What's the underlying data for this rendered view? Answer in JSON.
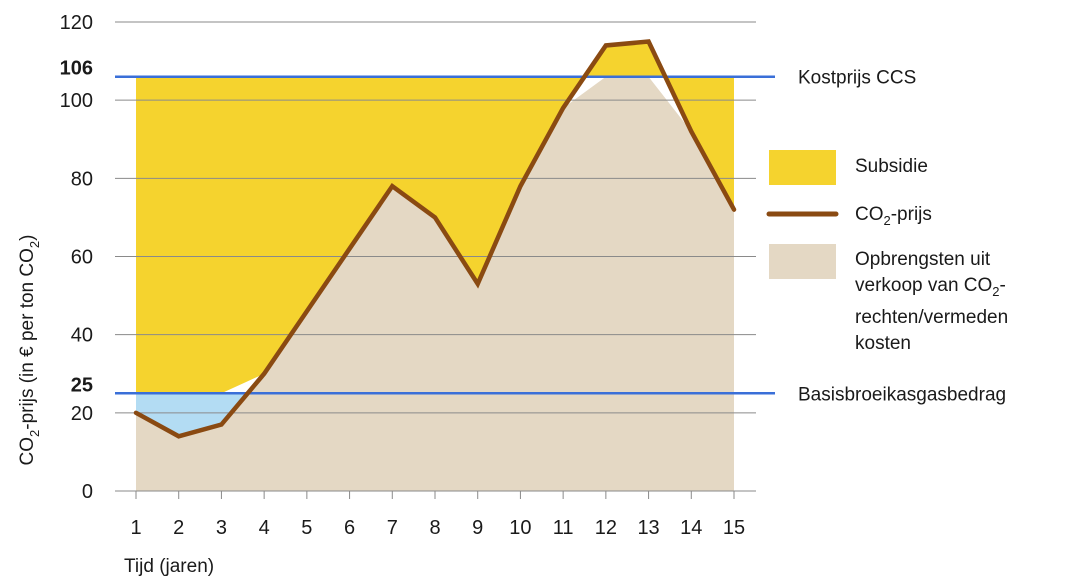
{
  "chart_data": {
    "type": "line",
    "xlabel": "Tijd (jaren)",
    "ylabel": "CO₂-prijs (in € per ton CO₂)",
    "x": [
      1,
      2,
      3,
      4,
      5,
      6,
      7,
      8,
      9,
      10,
      11,
      12,
      13,
      14,
      15
    ],
    "xlim": [
      1,
      15
    ],
    "ylim": [
      0,
      120
    ],
    "yticks": [
      0,
      20,
      40,
      60,
      80,
      100,
      120
    ],
    "series": [
      {
        "name": "CO₂-prijs",
        "color": "#8a4a12",
        "values": [
          20,
          14,
          17,
          30,
          46,
          62,
          78,
          70,
          53,
          78,
          98,
          114,
          115,
          92,
          72
        ]
      }
    ],
    "reference_lines": [
      {
        "value": 106,
        "label": "Kostprijs CCS",
        "color": "#3a6fd8"
      },
      {
        "value": 25,
        "label": "Basisbroeikasgasbedrag",
        "color": "#3a6fd8"
      }
    ],
    "areas": {
      "subsidie": {
        "name": "Subsidie",
        "color": "#f5d32e"
      },
      "opbrengsten": {
        "name": "Opbrengsten uit verkoop van CO₂-rechten/vermeden kosten",
        "color": "#e4d8c4"
      },
      "below_base": {
        "color": "#b3dcf3"
      }
    },
    "grid": true,
    "legend": "right"
  },
  "legend": {
    "subsidie": "Subsidie",
    "co2_prefix": "CO",
    "co2_sub": "2",
    "co2_suffix": "-prijs",
    "opbr_line1": "Opbrengsten uit",
    "opbr_line2_prefix": "verkoop van CO",
    "opbr_line2_sub": "2",
    "opbr_line2_suffix": "-",
    "opbr_line3": "rechten/vermeden",
    "opbr_line4": "kosten"
  },
  "ylabel_parts": {
    "a": "CO",
    "a_sub": "2",
    "b": "-prijs (in € per ton CO",
    "b_sub": "2",
    "c": ")"
  }
}
